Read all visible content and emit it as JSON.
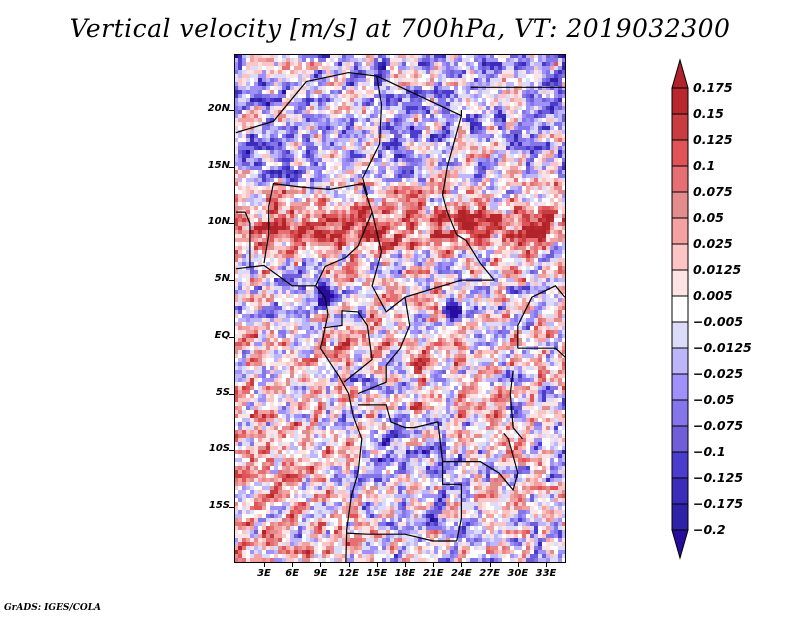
{
  "title": "Vertical velocity [m/s] at 700hPa, VT: 2019032300",
  "footer": "GrADS: IGES/COLA",
  "chart_data": {
    "type": "heatmap",
    "title": "Vertical velocity [m/s] at 700hPa, VT: 2019032300",
    "variable": "Vertical velocity",
    "units": "m/s",
    "level": "700hPa",
    "valid_time": "2019032300",
    "xlabel": "",
    "ylabel": "",
    "lon_range_deg": [
      0,
      36
    ],
    "lat_range_deg": [
      -20,
      25
    ],
    "x_ticks": [
      {
        "label": "3E",
        "value": 3
      },
      {
        "label": "6E",
        "value": 6
      },
      {
        "label": "9E",
        "value": 9
      },
      {
        "label": "12E",
        "value": 12
      },
      {
        "label": "15E",
        "value": 15
      },
      {
        "label": "18E",
        "value": 18
      },
      {
        "label": "21E",
        "value": 21
      },
      {
        "label": "24E",
        "value": 24
      },
      {
        "label": "27E",
        "value": 27
      },
      {
        "label": "30E",
        "value": 30
      },
      {
        "label": "33E",
        "value": 33
      }
    ],
    "y_ticks": [
      {
        "label": "20N",
        "value": 20
      },
      {
        "label": "15N",
        "value": 15
      },
      {
        "label": "10N",
        "value": 10
      },
      {
        "label": "5N",
        "value": 5
      },
      {
        "label": "EQ",
        "value": 0
      },
      {
        "label": "5S",
        "value": -5
      },
      {
        "label": "10S",
        "value": -10
      },
      {
        "label": "15S",
        "value": -15
      }
    ],
    "colorbar": {
      "placement": "right",
      "orientation": "vertical",
      "extend": "both",
      "labels": [
        "0.175",
        "0.15",
        "0.125",
        "0.1",
        "0.075",
        "0.05",
        "0.025",
        "0.0125",
        "0.005",
        "-0.005",
        "-0.0125",
        "-0.025",
        "-0.05",
        "-0.075",
        "-0.1",
        "-0.125",
        "-0.175",
        "-0.2"
      ],
      "colors_top_to_bottom": [
        "#b0232a",
        "#b8282d",
        "#c93c40",
        "#e05357",
        "#e56f72",
        "#e38c8e",
        "#f5a0a1",
        "#fcc5c5",
        "#fde3e3",
        "#ffffff",
        "#dcdcfa",
        "#bdb6fa",
        "#a090fa",
        "#8375ea",
        "#6f5ed8",
        "#4a3ccc",
        "#3b2cba",
        "#2e22a8",
        "#2a0ba0"
      ]
    },
    "features": {
      "positive_bands": [
        "zonal band of strong ascent near 8N-12N from 0E to 35E"
      ],
      "negative_spots": [
        "strong descent near Gulf of Guinea coast ~4N 10E",
        "strong descent ~3N 23E"
      ],
      "coastlines_and_borders": true
    }
  }
}
